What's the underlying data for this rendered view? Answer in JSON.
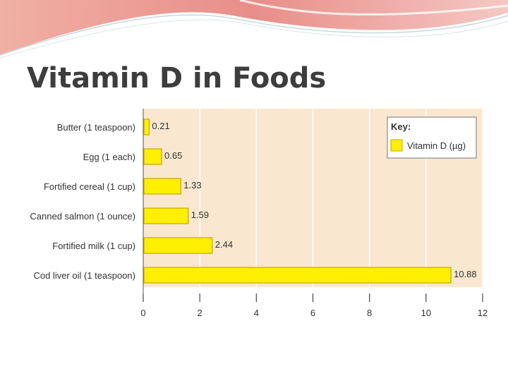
{
  "slide": {
    "title": "Vitamin D in Foods"
  },
  "colors": {
    "plot_background": "#f9e7cf",
    "bar_fill": "#ffef00",
    "bar_stroke": "#c9a500",
    "gridline": "#ffffff",
    "text": "#333333",
    "header_pink": "#e8878a",
    "header_wave": "#f2b7b9"
  },
  "chart_data": {
    "type": "bar",
    "orientation": "horizontal",
    "categories": [
      "Butter (1 teaspoon)",
      "Egg (1 each)",
      "Fortified cereal (1 cup)",
      "Canned salmon (1 ounce)",
      "Fortified milk (1 cup)",
      "Cod liver oil (1 teaspoon)"
    ],
    "series": [
      {
        "name": "Vitamin D (µg)",
        "values": [
          0.21,
          0.65,
          1.33,
          1.59,
          2.44,
          10.88
        ],
        "value_labels": [
          "0.21",
          "0.65",
          "1.33",
          "1.59",
          "2.44",
          "10.88"
        ]
      }
    ],
    "xlim": [
      0,
      12
    ],
    "xticks": [
      "0",
      "2",
      "4",
      "6",
      "8",
      "10",
      "12"
    ],
    "xtick_values": [
      0,
      2,
      4,
      6,
      8,
      10,
      12
    ],
    "xlabel": "",
    "ylabel": "",
    "grid": true,
    "legend": {
      "title": "Key:",
      "entries": [
        "Vitamin D (µg)"
      ],
      "placement": "top-right"
    }
  }
}
